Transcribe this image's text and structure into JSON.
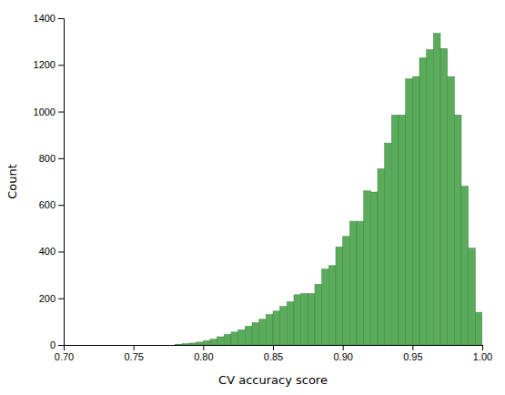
{
  "chart_data": {
    "type": "histogram",
    "xlabel": "CV accuracy score",
    "ylabel": "Count",
    "color": "#5aab5a",
    "grid": false,
    "xlim": [
      0.7,
      1.0
    ],
    "ylim": [
      0,
      1400
    ],
    "xticks": [
      {
        "value": 0.7,
        "label": "0.70"
      },
      {
        "value": 0.75,
        "label": "0.75"
      },
      {
        "value": 0.8,
        "label": "0.80"
      },
      {
        "value": 0.85,
        "label": "0.85"
      },
      {
        "value": 0.9,
        "label": "0.90"
      },
      {
        "value": 0.95,
        "label": "0.95"
      },
      {
        "value": 1.0,
        "label": "1.00"
      }
    ],
    "yticks": [
      0,
      200,
      400,
      600,
      800,
      1000,
      1200,
      1400
    ],
    "bins": [
      0.7,
      0.705,
      0.71,
      0.715,
      0.72,
      0.725,
      0.73,
      0.735,
      0.74,
      0.745,
      0.75,
      0.755,
      0.76,
      0.765,
      0.77,
      0.775,
      0.78,
      0.785,
      0.79,
      0.795,
      0.8,
      0.805,
      0.81,
      0.815,
      0.82,
      0.825,
      0.83,
      0.835,
      0.84,
      0.845,
      0.85,
      0.855,
      0.86,
      0.865,
      0.87,
      0.875,
      0.88,
      0.885,
      0.89,
      0.895,
      0.9,
      0.905,
      0.91,
      0.915,
      0.92,
      0.925,
      0.93,
      0.935,
      0.94,
      0.945,
      0.95,
      0.955,
      0.96,
      0.965,
      0.97,
      0.975,
      0.98,
      0.985,
      0.99,
      0.995,
      1.0
    ],
    "values": [
      0,
      0,
      0,
      0,
      0,
      0,
      0,
      0,
      0,
      0,
      0,
      0,
      0,
      0,
      0,
      0,
      3,
      5,
      8,
      12,
      18,
      25,
      35,
      45,
      55,
      65,
      80,
      95,
      110,
      130,
      145,
      165,
      185,
      215,
      220,
      220,
      260,
      325,
      340,
      420,
      465,
      530,
      530,
      660,
      655,
      755,
      865,
      985,
      985,
      1140,
      1150,
      1230,
      1265,
      1335,
      1270,
      1150,
      985,
      680,
      415,
      140
    ]
  }
}
